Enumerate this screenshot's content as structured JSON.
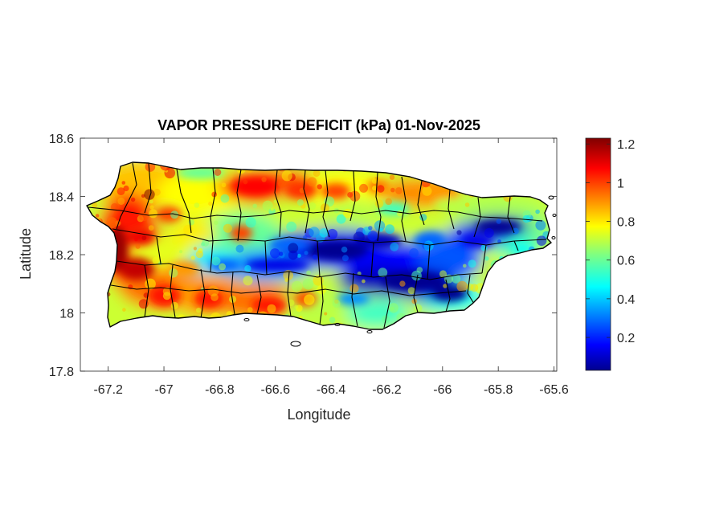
{
  "title": "VAPOR PRESSURE DEFICIT (kPa) 01-Nov-2025",
  "xlabel": "Longitude",
  "ylabel": "Latitude",
  "chart_data": {
    "type": "heatmap",
    "title": "VAPOR PRESSURE DEFICIT (kPa) 01-Nov-2025",
    "xlabel": "Longitude",
    "ylabel": "Latitude",
    "xlim": [
      -67.3,
      -65.59
    ],
    "ylim": [
      17.8,
      18.6
    ],
    "x_ticks": [
      -67.2,
      -67,
      -66.8,
      -66.6,
      -66.4,
      -66.2,
      -66,
      -65.8,
      -65.6
    ],
    "x_tick_labels": [
      "-67.2",
      "-67",
      "-66.8",
      "-66.6",
      "-66.4",
      "-66.2",
      "-66",
      "-65.8",
      "-65.6"
    ],
    "y_ticks": [
      17.8,
      18,
      18.2,
      18.4,
      18.6
    ],
    "y_tick_labels": [
      "17.8",
      "18",
      "18.2",
      "18.4",
      "18.6"
    ],
    "colorbar": {
      "colormap": "jet",
      "range": [
        0.03,
        1.23
      ],
      "ticks": [
        0.2,
        0.4,
        0.6,
        0.8,
        1,
        1.2
      ],
      "tick_labels": [
        "0.2",
        "0.4",
        "0.6",
        "0.8",
        "1",
        "1.2"
      ]
    },
    "grid": false,
    "value_hotspots": [
      {
        "lon": -67.17,
        "lat": 18.22,
        "value": 1.15
      },
      {
        "lon": -66.7,
        "lat": 18.43,
        "value": 1.05
      },
      {
        "lon": -66.5,
        "lat": 18.43,
        "value": 1.0
      },
      {
        "lon": -66.95,
        "lat": 18.07,
        "value": 1.0
      },
      {
        "lon": -66.7,
        "lat": 18.03,
        "value": 1.0
      },
      {
        "lon": -66.1,
        "lat": 18.42,
        "value": 0.9
      },
      {
        "lon": -66.35,
        "lat": 18.2,
        "value": 0.08
      },
      {
        "lon": -66.1,
        "lat": 18.1,
        "value": 0.06
      },
      {
        "lon": -65.85,
        "lat": 18.29,
        "value": 0.1
      }
    ]
  }
}
